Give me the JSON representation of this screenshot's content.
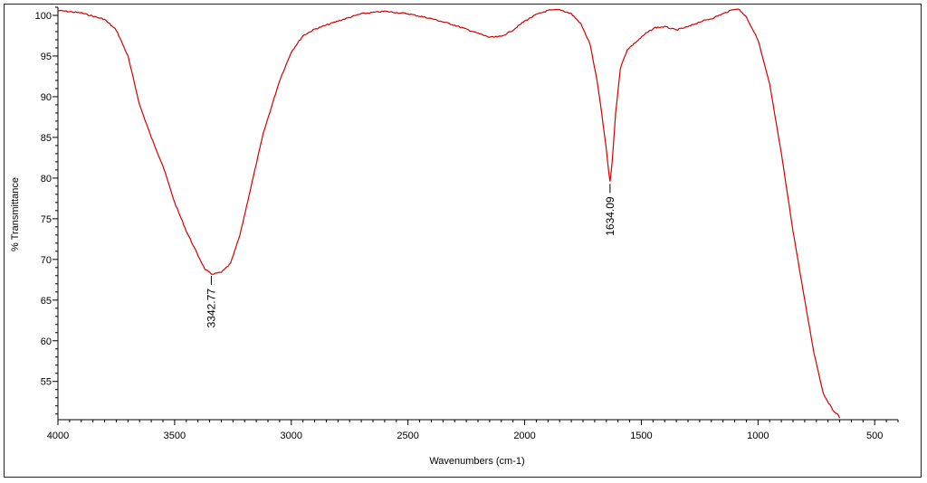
{
  "chart_data": {
    "type": "line",
    "xlabel": "Wavenumbers (cm-1)",
    "ylabel": "% Transmittance",
    "xlim": [
      4000,
      400
    ],
    "ylim": [
      50.3,
      101
    ],
    "x_ticks": [
      4000,
      3500,
      3000,
      2500,
      2000,
      1500,
      1000,
      500
    ],
    "y_ticks": [
      55,
      60,
      65,
      70,
      75,
      80,
      85,
      90,
      95,
      100
    ],
    "line_color": "#d40000",
    "series": [
      {
        "x": [
          4000,
          3900,
          3800,
          3750,
          3700,
          3650,
          3600,
          3550,
          3500,
          3450,
          3400,
          3370,
          3342.77,
          3300,
          3260,
          3220,
          3180,
          3120,
          3050,
          3000,
          2950,
          2900,
          2850,
          2800,
          2700,
          2600,
          2500,
          2400,
          2300,
          2200,
          2150,
          2100,
          2050,
          2000,
          1950,
          1900,
          1850,
          1800,
          1760,
          1720,
          1690,
          1670,
          1650,
          1640,
          1634.09,
          1625,
          1610,
          1590,
          1560,
          1520,
          1480,
          1440,
          1400,
          1350,
          1300,
          1250,
          1200,
          1150,
          1100,
          1080,
          1050,
          1000,
          950,
          900,
          850,
          800,
          760,
          720,
          680,
          660,
          650
        ],
        "y": [
          100.6,
          100.3,
          99.5,
          98.2,
          95.0,
          89.0,
          85.0,
          81.5,
          77.0,
          73.5,
          70.5,
          68.8,
          68.2,
          68.4,
          69.5,
          73.0,
          78.0,
          85.5,
          92.0,
          95.5,
          97.5,
          98.3,
          98.8,
          99.3,
          100.2,
          100.5,
          100.2,
          99.6,
          98.8,
          97.8,
          97.3,
          97.4,
          98.2,
          99.3,
          100.1,
          100.6,
          100.7,
          100.2,
          99.0,
          96.5,
          92.0,
          88.0,
          83.5,
          80.8,
          79.5,
          82.0,
          88.0,
          93.5,
          95.8,
          96.8,
          97.8,
          98.5,
          98.6,
          98.2,
          98.6,
          99.2,
          99.6,
          100.2,
          100.8,
          100.7,
          99.8,
          97.0,
          91.5,
          83.0,
          73.5,
          65.0,
          58.5,
          53.5,
          51.5,
          51.0,
          50.5
        ]
      }
    ],
    "annotations": [
      {
        "x": 3342.77,
        "y": 68.2,
        "label": "3342.77"
      },
      {
        "x": 1634.09,
        "y": 79.5,
        "label": "1634.09"
      }
    ]
  }
}
